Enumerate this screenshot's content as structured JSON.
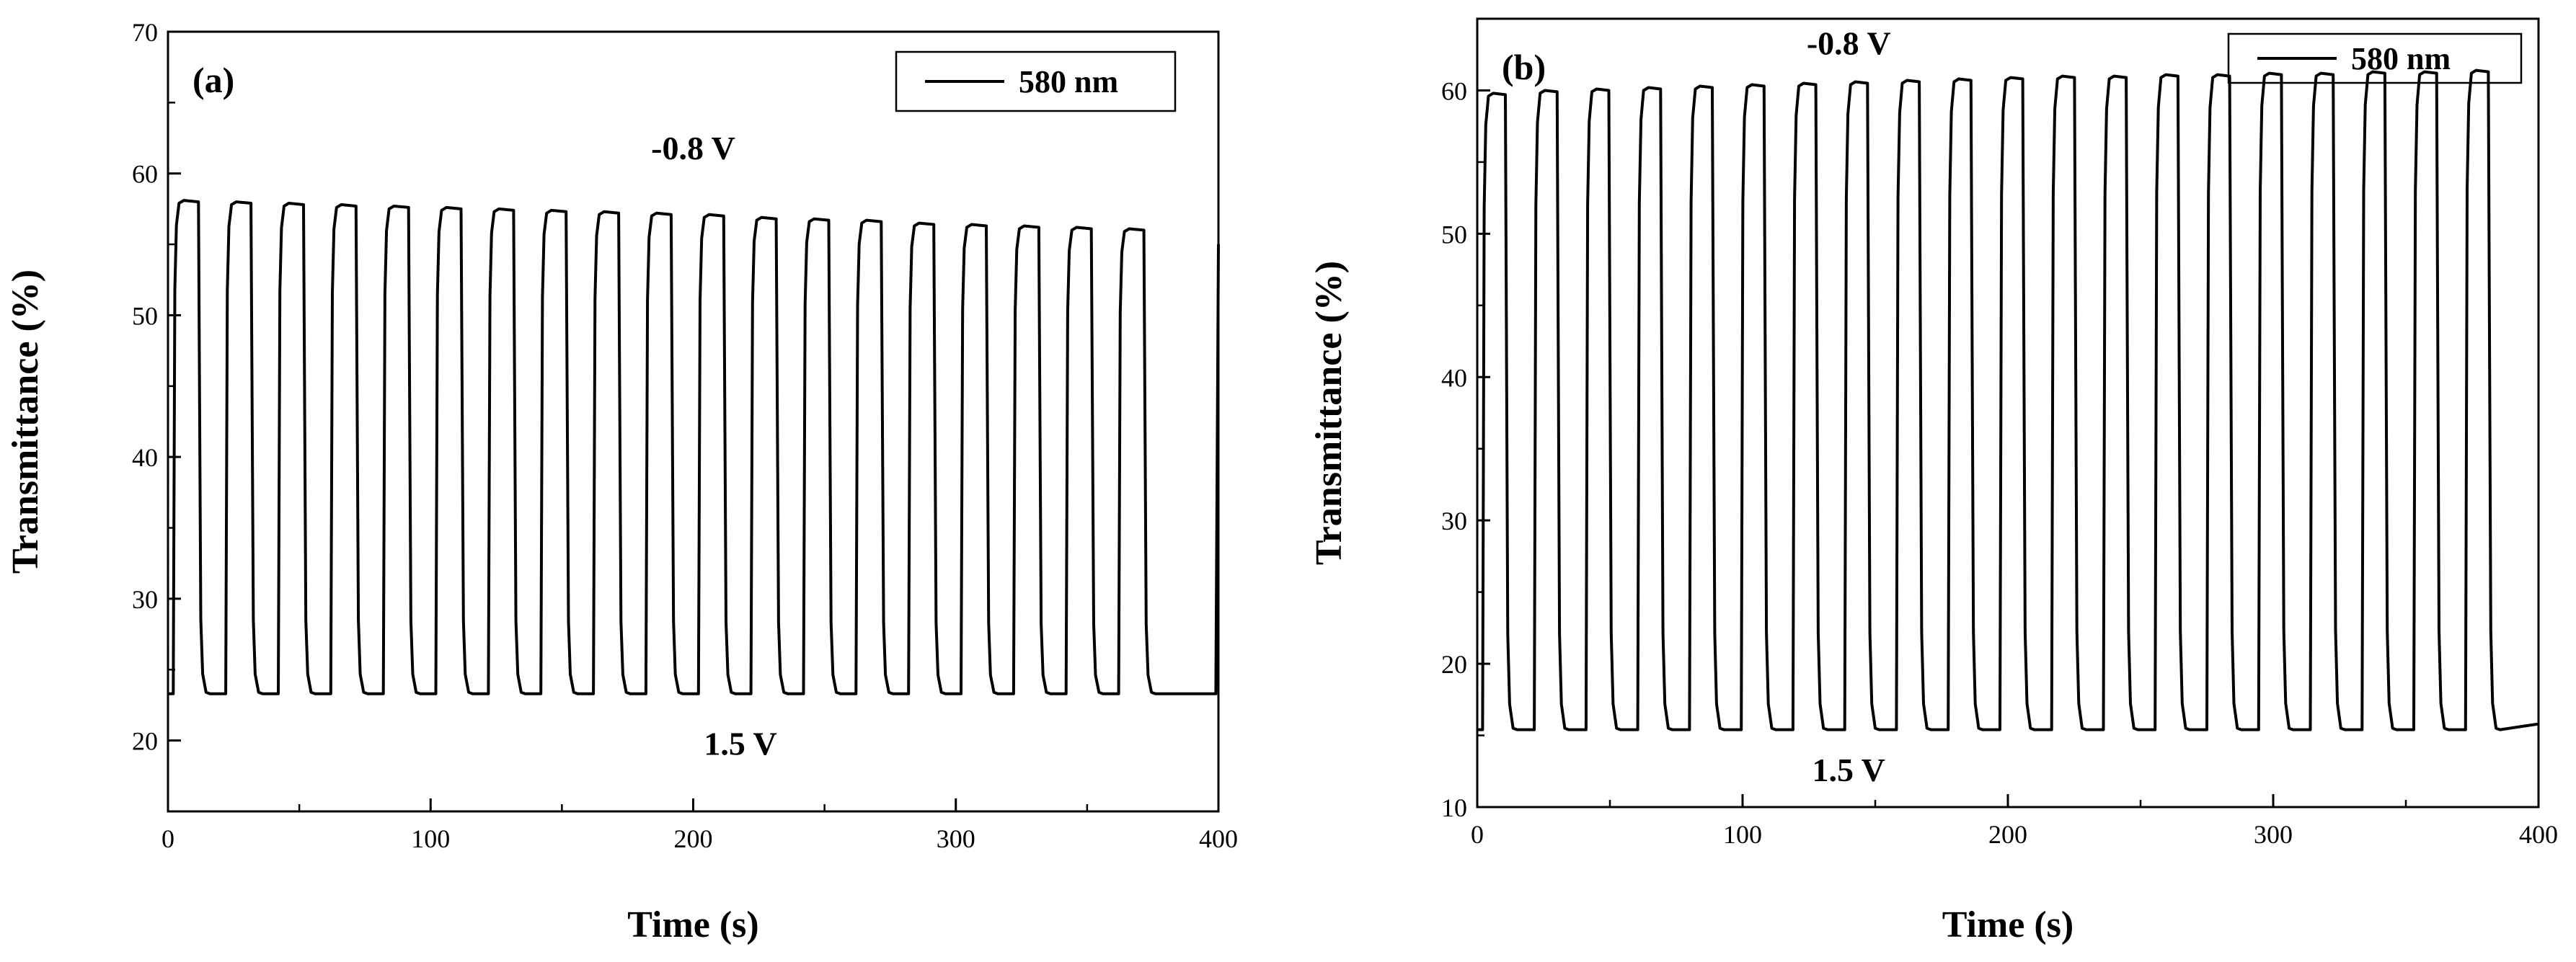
{
  "chart_data": [
    {
      "type": "line",
      "panel_label": "(a)",
      "xlabel": "Time (s)",
      "ylabel": "Transmittance (%)",
      "xlim": [
        0,
        400
      ],
      "ylim": [
        15,
        70
      ],
      "xticks": [
        0,
        100,
        200,
        300,
        400
      ],
      "yticks": [
        20,
        30,
        40,
        50,
        60,
        70
      ],
      "legend": {
        "position": "top-right",
        "entries": [
          "580 nm"
        ]
      },
      "annotations": [
        {
          "text": "-0.8 V",
          "x": 200,
          "y": 61
        },
        {
          "text": "1.5 V",
          "x": 218,
          "y": 19
        }
      ],
      "series": [
        {
          "name": "580 nm",
          "line_color": "#000000",
          "first_bleach_time": 2,
          "period": 20,
          "bleached_duration": 10,
          "bleached_time_values": [
            58.1,
            58.0,
            57.9,
            57.8,
            57.7,
            57.6,
            57.5,
            57.4,
            57.3,
            57.2,
            57.1,
            56.9,
            56.8,
            56.7,
            56.5,
            56.4,
            56.3,
            56.2,
            56.1
          ],
          "colored_level": 23.3,
          "final_rise_time": 399,
          "final_rise_value": 55
        }
      ]
    },
    {
      "type": "line",
      "panel_label": "(b)",
      "xlabel": "Time (s)",
      "ylabel": "Transmittance (%)",
      "xlim": [
        0,
        400
      ],
      "ylim": [
        10,
        65
      ],
      "xticks": [
        0,
        100,
        200,
        300,
        400
      ],
      "yticks": [
        10,
        20,
        30,
        40,
        50,
        60
      ],
      "legend": {
        "position": "top-right",
        "entries": [
          "580 nm"
        ]
      },
      "annotations": [
        {
          "text": "-0.8 V",
          "x": 140,
          "y": 62.5
        },
        {
          "text": "1.5 V",
          "x": 140,
          "y": 11.8
        }
      ],
      "series": [
        {
          "name": "580 nm",
          "line_color": "#000000",
          "first_bleach_time": 2,
          "period": 19.5,
          "bleached_duration": 9,
          "bleached_time_values": [
            59.8,
            60.0,
            60.1,
            60.2,
            60.3,
            60.4,
            60.5,
            60.6,
            60.7,
            60.8,
            60.9,
            61.0,
            61.0,
            61.1,
            61.1,
            61.2,
            61.2,
            61.3,
            61.3,
            61.4
          ],
          "colored_level": 15.4,
          "end_value": 15.8
        }
      ]
    }
  ]
}
